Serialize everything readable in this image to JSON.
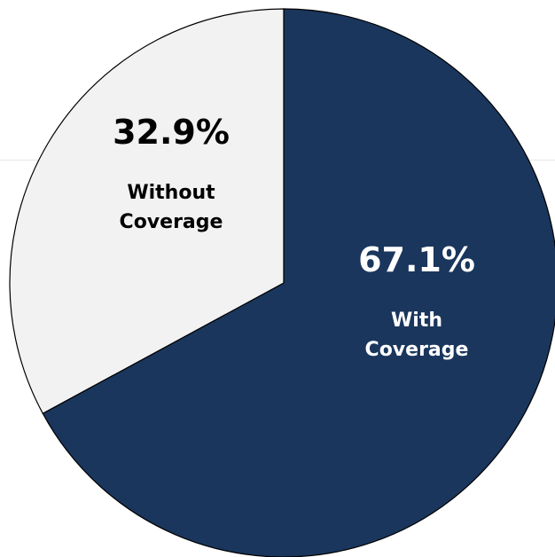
{
  "chart_data": {
    "type": "pie",
    "slices": [
      {
        "value": 67.1,
        "percent_label": "67.1%",
        "label_lines": [
          "With",
          "Coverage"
        ],
        "color": "#1a365d",
        "text_color": "#ffffff"
      },
      {
        "value": 32.9,
        "percent_label": "32.9%",
        "label_lines": [
          "Without",
          "Coverage"
        ],
        "color": "#f2f2f2",
        "text_color": "#000000"
      }
    ],
    "start_angle_deg": 0,
    "direction": "clockwise",
    "edge_color": "#000000"
  }
}
